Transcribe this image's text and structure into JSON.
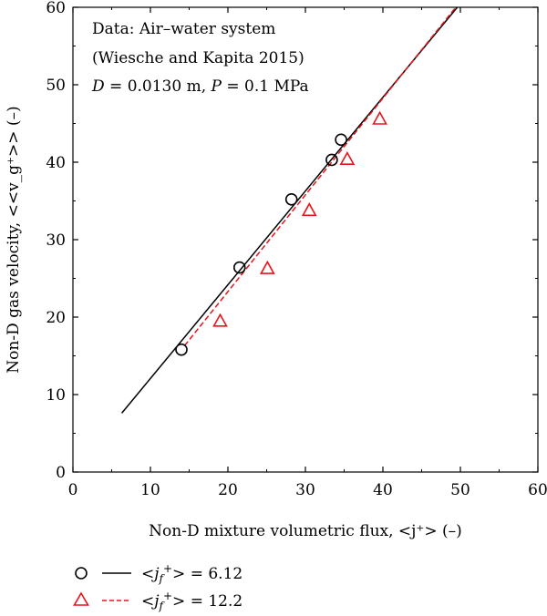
{
  "chart_data": {
    "type": "scatter",
    "xlabel": "Non-D mixture volumetric flux, <j⁺> (–)",
    "ylabel": "Non-D gas velocity, <<v_g⁺>> (–)",
    "xlim": [
      0,
      60
    ],
    "ylim": [
      0,
      60
    ],
    "x_ticks": [
      "0",
      "10",
      "20",
      "30",
      "40",
      "50",
      "60"
    ],
    "y_ticks": [
      "0",
      "10",
      "20",
      "30",
      "40",
      "50",
      "60"
    ],
    "grid": false,
    "legend_position": "bottom",
    "annotation": {
      "line1": "Data: Air–water system",
      "line2": "(Wiesche and Kapita 2015)",
      "line3_d": "D",
      "line3_d_val": " = 0.0130 m, ",
      "line3_p": "P",
      "line3_p_val": " = 0.1 MPa"
    },
    "series": [
      {
        "legend_value": " = 6.12",
        "marker": "circle",
        "color": "#000000",
        "line_style": "solid",
        "points": [
          [
            14.0,
            15.8
          ],
          [
            21.5,
            26.4
          ],
          [
            28.2,
            35.2
          ],
          [
            33.4,
            40.3
          ],
          [
            34.6,
            42.9
          ]
        ],
        "fit_line": [
          [
            6.3,
            7.6
          ],
          [
            49.6,
            60.0
          ]
        ]
      },
      {
        "legend_value": " = 12.2",
        "marker": "triangle",
        "color": "#e8141b",
        "line_style": "dashed",
        "points": [
          [
            19.0,
            19.5
          ],
          [
            25.1,
            26.3
          ],
          [
            30.5,
            33.8
          ],
          [
            35.4,
            40.4
          ],
          [
            39.6,
            45.6
          ]
        ],
        "fit_line": [
          [
            14.4,
            16.3
          ],
          [
            49.4,
            60.0
          ]
        ]
      }
    ]
  }
}
